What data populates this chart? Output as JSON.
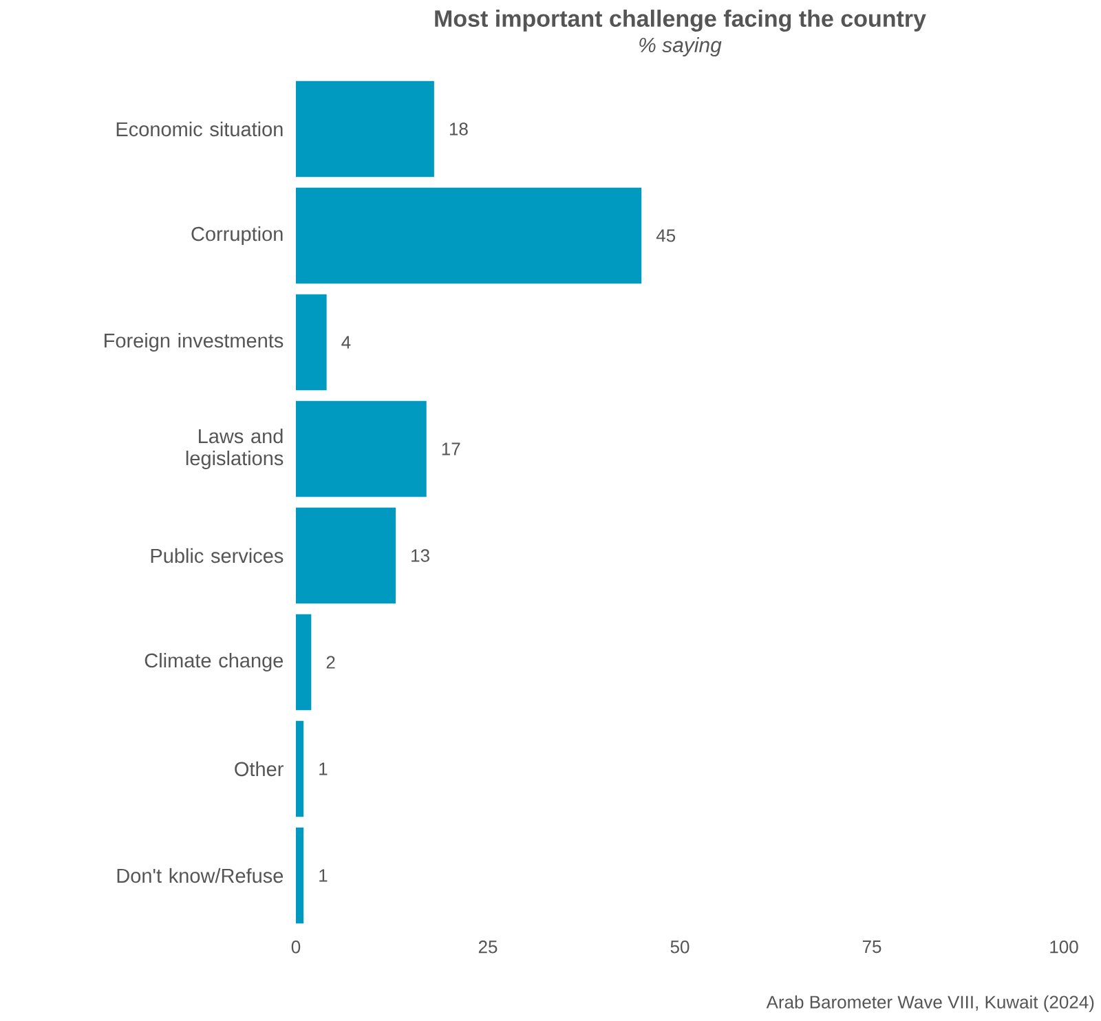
{
  "chart_data": {
    "type": "bar",
    "orientation": "horizontal",
    "title": "Most important challenge facing the country",
    "subtitle": "% saying",
    "categories": [
      "Economic situation",
      "Corruption",
      "Foreign investments",
      "Laws and legislations",
      "Public services",
      "Climate change",
      "Other",
      "Don't know/Refuse"
    ],
    "values": [
      18,
      45,
      4,
      17,
      13,
      2,
      1,
      1
    ],
    "color": "#0099c0",
    "xlim": [
      0,
      100
    ],
    "xticks": [
      0,
      25,
      50,
      75,
      100
    ],
    "data_labels": true,
    "grid": false,
    "annotations": [
      "Arab Barometer Wave VIII, Kuwait (2024)"
    ]
  }
}
